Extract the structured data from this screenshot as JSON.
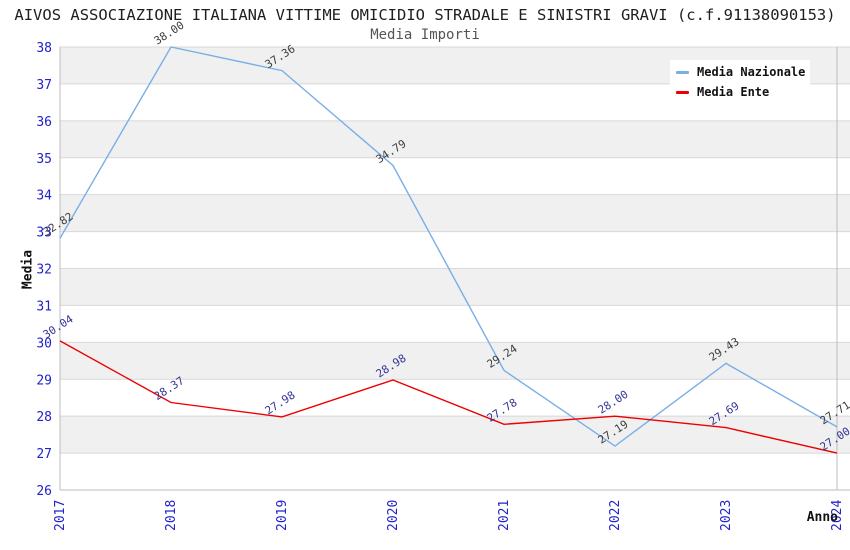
{
  "colors": {
    "background": "#FFFFFF",
    "band": "#F0F0F0",
    "grid": "#D8D8D8",
    "frame": "#BDBDBD",
    "tick_text": "#2323CC",
    "title_text": "#1F1F1F",
    "subtitle_text": "#555555",
    "axis_title_text": "#111111",
    "legend_bg": "#FFFFFF",
    "series_blue": "#79AFE7",
    "series_red": "#EE0000",
    "label_dark": "#3C3C3C",
    "label_navy": "#333399"
  },
  "chart_data": {
    "type": "line",
    "title": "AIVOS ASSOCIAZIONE ITALIANA VITTIME OMICIDIO STRADALE E SINISTRI GRAVI (c.f.91138090153)",
    "subtitle": "Media Importi",
    "xlabel": "Anno",
    "ylabel": "Media",
    "categories": [
      "2017",
      "2018",
      "2019",
      "2020",
      "2021",
      "2022",
      "2023",
      "2024"
    ],
    "series": [
      {
        "name": "Media Nazionale",
        "color": "#79AFE7",
        "label_color": "#3C3C3C",
        "values": [
          32.82,
          38.0,
          37.36,
          34.79,
          29.24,
          27.19,
          29.43,
          27.71
        ]
      },
      {
        "name": "Media Ente",
        "color": "#EE0000",
        "label_color": "#333399",
        "values": [
          30.04,
          28.37,
          27.98,
          28.98,
          27.78,
          28.0,
          27.69,
          27.0
        ]
      }
    ],
    "ylim": [
      26,
      38
    ],
    "ytick_step": 1,
    "yticks": [
      26,
      27,
      28,
      29,
      30,
      31,
      32,
      33,
      34,
      35,
      36,
      37,
      38
    ],
    "grid": true,
    "band_pattern": "alternating horizontal bands, gray starting at top (38-37)",
    "legend_position": "top-right",
    "value_label_format": "2 decimals, rotated -33deg",
    "x_tick_rotation": -90
  }
}
